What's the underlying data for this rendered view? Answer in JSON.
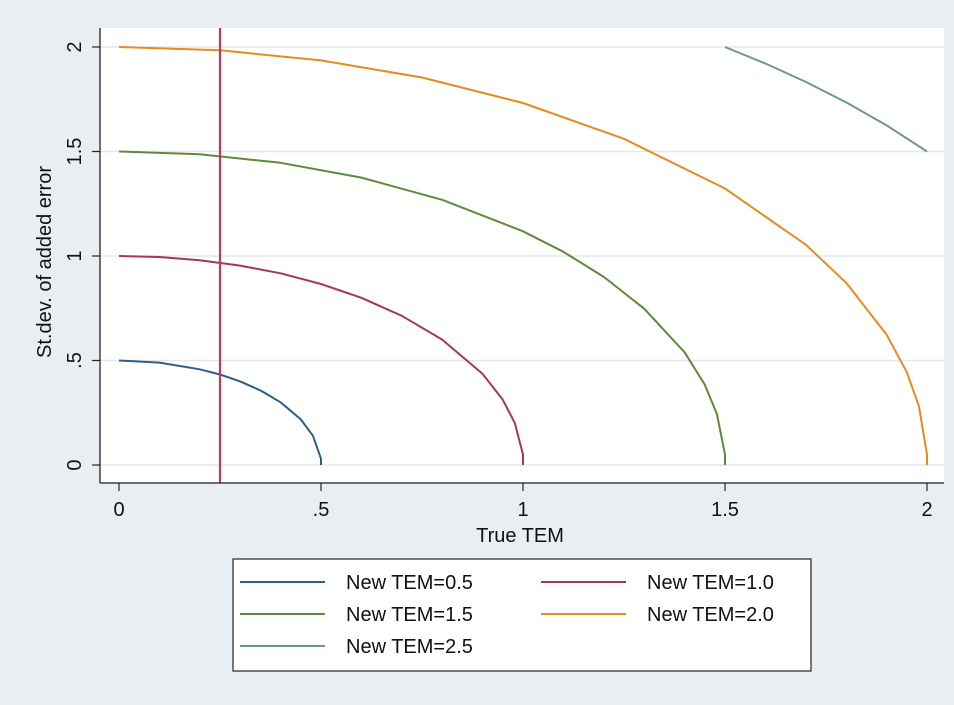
{
  "chart_data": {
    "type": "line",
    "title": "",
    "xlabel": "True TEM",
    "ylabel": "St.dev. of added error",
    "xlim": [
      0,
      2
    ],
    "ylim": [
      0,
      2
    ],
    "x_ticks": [
      {
        "value": 0,
        "label": "0"
      },
      {
        "value": 0.5,
        "label": ".5"
      },
      {
        "value": 1,
        "label": "1"
      },
      {
        "value": 1.5,
        "label": "1.5"
      },
      {
        "value": 2,
        "label": "2"
      }
    ],
    "y_ticks": [
      {
        "value": 0,
        "label": "0"
      },
      {
        "value": 0.5,
        "label": ".5"
      },
      {
        "value": 1,
        "label": "1"
      },
      {
        "value": 1.5,
        "label": "1.5"
      },
      {
        "value": 2,
        "label": "2"
      }
    ],
    "grid": "horizontal",
    "legend_position": "bottom",
    "vertical_reference_line": {
      "x": 0.25,
      "color": "#c0395a"
    },
    "series": [
      {
        "name": "New TEM=0.5",
        "color": "#2d5f8a",
        "x": [
          0,
          0.1,
          0.2,
          0.25,
          0.3,
          0.35,
          0.4,
          0.45,
          0.48,
          0.5,
          0.5
        ],
        "y": [
          0.5,
          0.49,
          0.458,
          0.433,
          0.4,
          0.357,
          0.3,
          0.218,
          0.14,
          0.03,
          0
        ]
      },
      {
        "name": "New TEM=1.0",
        "color": "#a33a4e",
        "x": [
          0,
          0.1,
          0.2,
          0.3,
          0.4,
          0.5,
          0.6,
          0.7,
          0.8,
          0.9,
          0.95,
          0.98,
          1.0,
          1.0
        ],
        "y": [
          1.0,
          0.995,
          0.98,
          0.954,
          0.917,
          0.866,
          0.8,
          0.714,
          0.6,
          0.436,
          0.312,
          0.2,
          0.05,
          0
        ]
      },
      {
        "name": "New TEM=1.5",
        "color": "#5e8a3c",
        "x": [
          0,
          0.2,
          0.4,
          0.6,
          0.8,
          1.0,
          1.1,
          1.2,
          1.3,
          1.4,
          1.45,
          1.48,
          1.5,
          1.5
        ],
        "y": [
          1.5,
          1.487,
          1.446,
          1.375,
          1.269,
          1.118,
          1.02,
          0.9,
          0.748,
          0.539,
          0.384,
          0.244,
          0.05,
          0
        ]
      },
      {
        "name": "New TEM=2.0",
        "color": "#e88a1f",
        "x": [
          0,
          0.25,
          0.5,
          0.75,
          1.0,
          1.25,
          1.5,
          1.7,
          1.8,
          1.9,
          1.95,
          1.98,
          2.0,
          2.0
        ],
        "y": [
          2.0,
          1.984,
          1.936,
          1.854,
          1.732,
          1.561,
          1.323,
          1.054,
          0.872,
          0.624,
          0.444,
          0.282,
          0.05,
          0
        ]
      },
      {
        "name": "New TEM=2.5",
        "color": "#6f9590",
        "x": [
          1.5,
          1.6,
          1.7,
          1.8,
          1.9,
          2.0
        ],
        "y": [
          2.0,
          1.921,
          1.833,
          1.735,
          1.625,
          1.5
        ]
      }
    ]
  }
}
